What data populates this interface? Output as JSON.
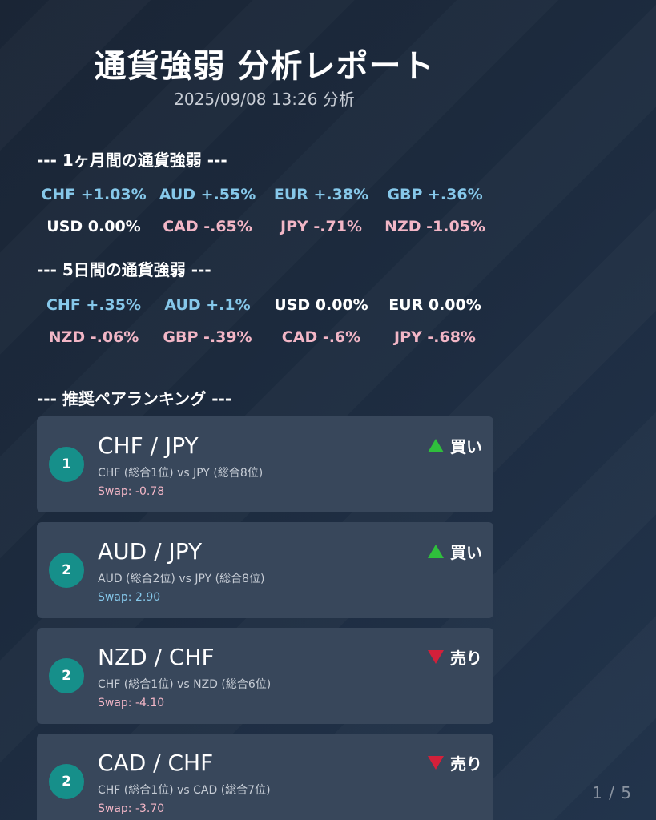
{
  "colors": {
    "positive": "#86c8ea",
    "neutral": "#ffffff",
    "negative": "#f2b6c6",
    "badge": "#168f8a",
    "buy": "#2fbf3c",
    "sell": "#d3203a",
    "card": "#38475b"
  },
  "report": {
    "title": "通貨強弱 分析レポート",
    "timestamp": "2025/09/08 13:26 分析"
  },
  "month_section": {
    "heading": "--- 1ヶ月間の通貨強弱 ---",
    "items": [
      {
        "text": "CHF +1.03%",
        "tone": "pos"
      },
      {
        "text": "AUD +.55%",
        "tone": "pos"
      },
      {
        "text": "EUR +.38%",
        "tone": "pos"
      },
      {
        "text": "GBP +.36%",
        "tone": "pos"
      },
      {
        "text": "USD 0.00%",
        "tone": "neu"
      },
      {
        "text": "CAD -.65%",
        "tone": "neg"
      },
      {
        "text": "JPY -.71%",
        "tone": "neg"
      },
      {
        "text": "NZD -1.05%",
        "tone": "neg"
      }
    ]
  },
  "five_day_section": {
    "heading": "--- 5日間の通貨強弱 ---",
    "items": [
      {
        "text": "CHF +.35%",
        "tone": "pos"
      },
      {
        "text": "AUD +.1%",
        "tone": "pos"
      },
      {
        "text": "USD 0.00%",
        "tone": "neu"
      },
      {
        "text": "EUR 0.00%",
        "tone": "neu"
      },
      {
        "text": "NZD -.06%",
        "tone": "neg"
      },
      {
        "text": "GBP -.39%",
        "tone": "neg"
      },
      {
        "text": "CAD -.6%",
        "tone": "neg"
      },
      {
        "text": "JPY -.68%",
        "tone": "neg"
      }
    ]
  },
  "ranking": {
    "heading": "--- 推奨ペアランキング ---",
    "pairs": [
      {
        "rank": "1",
        "pair": "CHF / JPY",
        "detail": "CHF (総合1位) vs JPY (総合8位)",
        "swap": "Swap: -0.78",
        "swap_tone": "neg",
        "signal": "買い",
        "direction": "buy"
      },
      {
        "rank": "2",
        "pair": "AUD / JPY",
        "detail": "AUD (総合2位) vs JPY (総合8位)",
        "swap": "Swap: 2.90",
        "swap_tone": "pos",
        "signal": "買い",
        "direction": "buy"
      },
      {
        "rank": "2",
        "pair": "NZD / CHF",
        "detail": "CHF (総合1位) vs NZD (総合6位)",
        "swap": "Swap: -4.10",
        "swap_tone": "neg",
        "signal": "売り",
        "direction": "sell"
      },
      {
        "rank": "2",
        "pair": "CAD / CHF",
        "detail": "CHF (総合1位) vs CAD (総合7位)",
        "swap": "Swap: -3.70",
        "swap_tone": "neg",
        "signal": "売り",
        "direction": "sell"
      }
    ]
  },
  "pagination": {
    "indicator": "1 / 5"
  }
}
